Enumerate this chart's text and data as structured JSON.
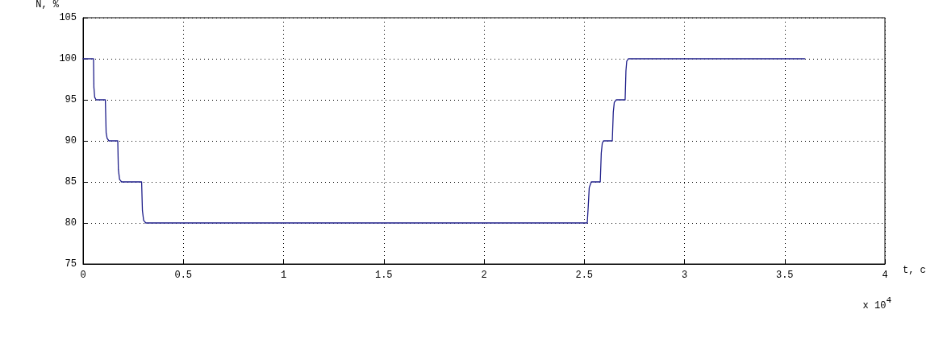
{
  "chart_data": {
    "type": "line",
    "xlabel": "t, c",
    "ylabel": "N, %",
    "x": [
      0,
      0.052,
      0.054,
      0.058,
      0.065,
      0.111,
      0.115,
      0.12,
      0.129,
      0.173,
      0.176,
      0.182,
      0.192,
      0.292,
      0.296,
      0.302,
      0.313,
      2.515,
      2.52,
      2.525,
      2.535,
      2.58,
      2.585,
      2.59,
      2.596,
      2.64,
      2.645,
      2.65,
      2.66,
      2.704,
      2.708,
      2.712,
      2.72,
      3.6
    ],
    "series": [
      {
        "color": "#1f1f8a",
        "values": [
          100,
          100,
          96.5,
          95.3,
          95,
          95,
          91,
          90.3,
          90,
          90,
          86.5,
          85.3,
          85,
          85,
          81.5,
          80.3,
          80,
          80,
          82,
          84.3,
          85,
          85,
          88.5,
          89.7,
          90,
          90,
          93.5,
          94.7,
          95,
          95,
          98.5,
          99.7,
          100,
          100
        ]
      }
    ],
    "xlim": [
      0,
      4
    ],
    "xticks": [
      0,
      0.5,
      1,
      1.5,
      2,
      2.5,
      3,
      3.5,
      4
    ],
    "ylim": [
      75,
      105
    ],
    "yticks": [
      75,
      80,
      85,
      90,
      95,
      100,
      105
    ],
    "annotations": [
      "x 10$^{4}$"
    ],
    "grid": true,
    "marker": "none",
    "line_style": "solid"
  }
}
